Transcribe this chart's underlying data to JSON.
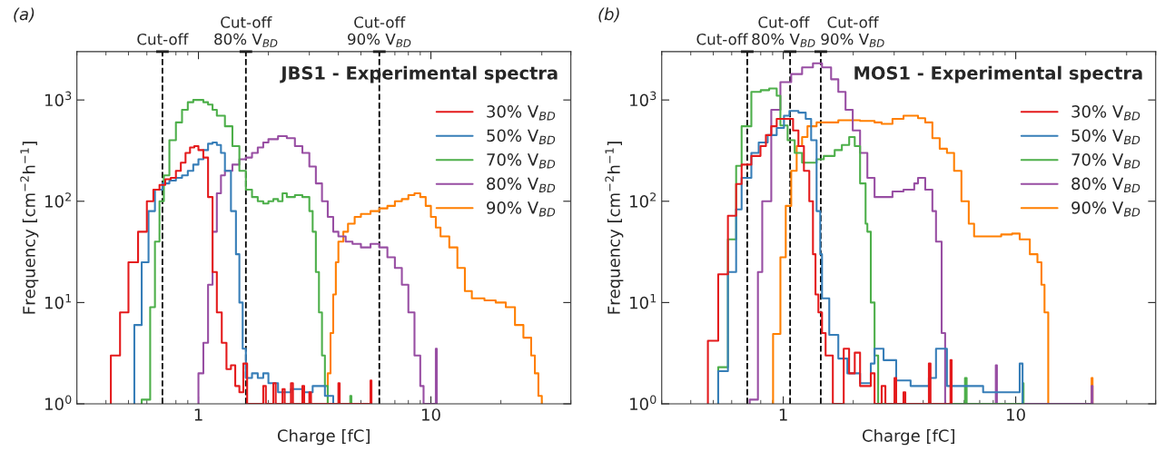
{
  "chart_data": [
    {
      "type": "step",
      "title": "JBS1 - Experimental spectra",
      "xlabel": "Charge [fC]",
      "ylabel": "Frequency [cm$^{−2}$h$^{−1}$]",
      "annotations": [
        "(a)"
      ],
      "log": "xy",
      "legend": "top right",
      "marker": "none",
      "line_style": "solid",
      "xlim": [
        0.3,
        40
      ],
      "ylim": [
        1,
        3000
      ],
      "xticks": [
        1,
        10
      ],
      "yticks": [
        {
          "value": 1,
          "label": "10$^{0}$"
        },
        {
          "value": 10,
          "label": "10$^{1}$"
        },
        {
          "value": 100,
          "label": "10$^{2}$"
        },
        {
          "value": 1000,
          "label": "10$^{3}$"
        }
      ],
      "ref_lines": [
        {
          "axis": "x",
          "value": 0.7,
          "label": "Cut-off",
          "color": "#000000",
          "line_style": "dashed"
        },
        {
          "axis": "x",
          "value": 1.6,
          "label": "Cut-off\n80% V$_{BD}$",
          "color": "#000000",
          "line_style": "dashed"
        },
        {
          "axis": "x",
          "value": 6,
          "label": "Cut-off\n90% V$_{BD}$",
          "color": "#000000",
          "line_style": "dashed"
        }
      ],
      "series": [
        {
          "name": "30% V$_{BD}$",
          "color": "#e41a1c",
          "x": [
            0.42,
            0.42,
            0.46,
            0.5,
            0.55,
            0.6,
            0.64,
            0.68,
            0.72,
            0.76,
            0.8,
            0.84,
            0.88,
            0.92,
            0.96,
            1.0,
            1.05,
            1.1,
            1.15,
            1.2,
            1.26,
            1.32,
            1.38,
            1.44,
            1.5,
            1.56,
            1.62,
            1.9,
            1.95,
            2.1,
            2.15,
            2.3,
            2.35,
            2.5,
            2.55,
            2.8,
            2.85,
            3.0,
            3.05,
            4.0,
            4.05,
            5.5,
            5.55
          ],
          "values": [
            1,
            3,
            8,
            25,
            50,
            100,
            130,
            145,
            165,
            170,
            200,
            240,
            300,
            340,
            350,
            320,
            270,
            110,
            20,
            8,
            4,
            2.2,
            2.4,
            1.5,
            1.3,
            2.5,
            1,
            1.5,
            1,
            1.6,
            1,
            1.4,
            1,
            1.6,
            1,
            1.5,
            1,
            1.3,
            1,
            1.6,
            1,
            1.7,
            1
          ]
        },
        {
          "name": "50% V$_{BD}$",
          "color": "#377eb8",
          "x": [
            0.53,
            0.53,
            0.57,
            0.61,
            0.65,
            0.7,
            0.75,
            0.8,
            0.85,
            0.9,
            0.95,
            1.0,
            1.05,
            1.1,
            1.15,
            1.2,
            1.25,
            1.3,
            1.38,
            1.45,
            1.5,
            1.55,
            1.6,
            1.7,
            1.8,
            1.9,
            2.0,
            2.2,
            2.5,
            2.8,
            3.1,
            3.5,
            3.8
          ],
          "values": [
            1,
            6,
            25,
            80,
            130,
            150,
            160,
            170,
            180,
            200,
            230,
            260,
            320,
            370,
            380,
            360,
            300,
            200,
            80,
            30,
            10,
            3.5,
            1.8,
            2,
            1.8,
            2,
            1.6,
            1.3,
            1.4,
            1.3,
            1.5,
            1.2,
            1
          ]
        },
        {
          "name": "70% V$_{BD}$",
          "color": "#4daf4a",
          "x": [
            0.57,
            0.57,
            0.62,
            0.65,
            0.68,
            0.71,
            0.75,
            0.8,
            0.85,
            0.9,
            0.95,
            1.0,
            1.05,
            1.1,
            1.15,
            1.2,
            1.3,
            1.4,
            1.5,
            1.6,
            1.7,
            1.8,
            1.9,
            2.0,
            2.1,
            2.2,
            2.3,
            2.4,
            2.6,
            2.8,
            3.0,
            3.1,
            3.2,
            3.3,
            3.4,
            3.5,
            3.6,
            4.5,
            4.55
          ],
          "values": [
            1,
            1.1,
            9,
            40,
            100,
            180,
            400,
            600,
            800,
            950,
            1000,
            1000,
            950,
            900,
            800,
            700,
            550,
            350,
            200,
            130,
            110,
            100,
            95,
            100,
            105,
            100,
            120,
            110,
            115,
            110,
            80,
            50,
            20,
            8,
            3,
            1.5,
            1,
            1.2,
            1
          ]
        },
        {
          "name": "80% V$_{BD}$",
          "color": "#984ea3",
          "x": [
            1.0,
            1.0,
            1.05,
            1.1,
            1.15,
            1.2,
            1.25,
            1.3,
            1.4,
            1.5,
            1.6,
            1.7,
            1.8,
            1.9,
            2.0,
            2.2,
            2.4,
            2.6,
            2.8,
            3.0,
            3.2,
            3.4,
            3.6,
            3.8,
            4.0,
            4.3,
            4.6,
            5.0,
            5.5,
            6.0,
            6.5,
            7.0,
            7.5,
            8.0,
            8.5,
            9.0,
            9.3,
            10.5,
            10.6
          ],
          "values": [
            1,
            2,
            4,
            15,
            50,
            120,
            180,
            200,
            230,
            260,
            270,
            300,
            340,
            380,
            410,
            440,
            420,
            350,
            300,
            220,
            150,
            100,
            70,
            50,
            45,
            40,
            38,
            35,
            38,
            35,
            28,
            22,
            15,
            8,
            3,
            1.5,
            1,
            3.5,
            1
          ]
        },
        {
          "name": "90% V$_{BD}$",
          "color": "#ff7f00",
          "x": [
            3.6,
            3.6,
            3.7,
            3.8,
            3.9,
            4.0,
            4.2,
            4.4,
            4.7,
            5.0,
            5.5,
            6.0,
            6.5,
            7.0,
            7.5,
            8.0,
            8.5,
            9.0,
            9.5,
            10,
            10.5,
            11,
            12,
            13,
            14,
            15,
            17,
            19,
            21,
            23,
            25,
            27,
            28,
            29,
            30
          ],
          "values": [
            1,
            2,
            5,
            12,
            25,
            40,
            50,
            60,
            70,
            75,
            80,
            85,
            90,
            100,
            105,
            115,
            120,
            110,
            90,
            70,
            55,
            45,
            35,
            22,
            13,
            11,
            10.5,
            10,
            9,
            6,
            4.5,
            3,
            2,
            1.2,
            1
          ]
        }
      ]
    },
    {
      "type": "step",
      "title": "MOS1 - Experimental spectra",
      "xlabel": "Charge [fC]",
      "ylabel": "Frequency [cm$^{−2}$h$^{−1}$]",
      "annotations": [
        "(b)"
      ],
      "log": "xy",
      "legend": "top right",
      "marker": "none",
      "line_style": "solid",
      "xlim": [
        0.3,
        40
      ],
      "ylim": [
        1,
        3000
      ],
      "xticks": [
        1,
        10
      ],
      "yticks": [
        {
          "value": 1,
          "label": "10$^{0}$"
        },
        {
          "value": 10,
          "label": "10$^{1}$"
        },
        {
          "value": 100,
          "label": "10$^{2}$"
        },
        {
          "value": 1000,
          "label": "10$^{3}$"
        }
      ],
      "ref_lines": [
        {
          "axis": "x",
          "value": 0.7,
          "label": "Cut-off",
          "color": "#000000",
          "line_style": "dashed"
        },
        {
          "axis": "x",
          "value": 1.07,
          "label": "Cut-off\n80% V$_{BD}$",
          "color": "#000000",
          "line_style": "dashed"
        },
        {
          "axis": "x",
          "value": 1.45,
          "label": "Cut-off\n90% V$_{BD}$",
          "color": "#000000",
          "line_style": "dashed"
        }
      ],
      "series": [
        {
          "name": "30% V$_{BD}$",
          "color": "#e41a1c",
          "x": [
            0.474,
            0.474,
            0.525,
            0.578,
            0.627,
            0.662,
            0.729,
            0.798,
            0.842,
            0.888,
            0.937,
            0.989,
            1.102,
            1.162,
            1.227,
            1.294,
            1.342,
            1.376,
            1.416,
            1.468,
            1.521,
            1.634,
            1.82,
            1.92,
            2.03,
            2.14,
            2.38,
            2.47,
            2.65,
            2.75,
            3.01,
            3.06,
            3.29,
            3.35,
            4.23,
            4.3,
            5.24,
            5.3
          ],
          "values": [
            1,
            4.2,
            19,
            72,
            148,
            230,
            280,
            350,
            450,
            550,
            650,
            650,
            500,
            350,
            200,
            100,
            30,
            12,
            8,
            5,
            3,
            1,
            3.5,
            2,
            3.2,
            1.5,
            2,
            1,
            1.5,
            1,
            1.8,
            1,
            1.3,
            1,
            2.5,
            1,
            2.7,
            1
          ]
        },
        {
          "name": "50% V$_{BD}$",
          "color": "#377eb8",
          "x": [
            0.525,
            0.525,
            0.578,
            0.627,
            0.662,
            0.729,
            0.784,
            0.857,
            0.937,
            1.007,
            1.063,
            1.162,
            1.249,
            1.318,
            1.391,
            1.442,
            1.468,
            1.577,
            1.725,
            1.887,
            2.14,
            2.38,
            2.47,
            2.7,
            3.06,
            3.53,
            4.23,
            4.54,
            5.06,
            7.24,
            10.4,
            10.7
          ],
          "values": [
            1,
            2.1,
            20,
            83,
            170,
            300,
            380,
            450,
            530,
            700,
            780,
            750,
            650,
            400,
            80,
            30,
            11,
            4.8,
            2.8,
            2,
            1.6,
            2.5,
            3.5,
            2.7,
            1.7,
            1.5,
            1.8,
            3.5,
            1.5,
            1.3,
            2.5,
            1
          ]
        },
        {
          "name": "70% V$_{BD}$",
          "color": "#4daf4a",
          "x": [
            0.525,
            0.525,
            0.578,
            0.627,
            0.662,
            0.729,
            0.8,
            0.87,
            0.937,
            0.972,
            1.044,
            1.12,
            1.205,
            1.294,
            1.391,
            1.494,
            1.664,
            1.787,
            1.921,
            2.03,
            2.14,
            2.26,
            2.3,
            2.38,
            2.47,
            2.56,
            6.05,
            6.15,
            10.7,
            10.8
          ],
          "values": [
            1,
            2.3,
            42,
            224,
            550,
            1200,
            1250,
            1300,
            1100,
            560,
            400,
            300,
            240,
            240,
            260,
            280,
            320,
            360,
            430,
            350,
            150,
            60,
            50,
            10,
            3,
            1,
            1.8,
            1,
            1.6,
            1
          ]
        },
        {
          "name": "80% V$_{BD}$",
          "color": "#984ea3",
          "x": [
            0.717,
            0.717,
            0.778,
            0.812,
            0.888,
            0.972,
            1.082,
            1.205,
            1.342,
            1.468,
            1.606,
            1.725,
            1.853,
            1.99,
            2.14,
            2.3,
            2.47,
            2.75,
            2.95,
            3.29,
            3.66,
            3.8,
            4.08,
            4.38,
            4.54,
            4.8,
            4.97,
            8.21,
            8.3,
            21.2,
            21.4
          ],
          "values": [
            1,
            1.1,
            20,
            100,
            800,
            1500,
            1800,
            2100,
            2300,
            2100,
            1600,
            1200,
            800,
            500,
            300,
            170,
            110,
            110,
            125,
            130,
            150,
            170,
            130,
            80,
            40,
            5,
            1,
            2.4,
            1,
            1.5,
            1
          ]
        },
        {
          "name": "90% V$_{BD}$",
          "color": "#ff7f00",
          "x": [
            0.904,
            0.904,
            0.972,
            1.025,
            1.082,
            1.142,
            1.205,
            1.271,
            1.391,
            1.725,
            2.14,
            2.47,
            2.65,
            2.95,
            3.29,
            3.8,
            4.08,
            4.38,
            4.71,
            5.06,
            5.43,
            5.84,
            6.28,
            6.62,
            7.24,
            8.66,
            9.65,
            10.4,
            11.5,
            12.4,
            12.9,
            13.3,
            13.8,
            21.2,
            21.4
          ],
          "values": [
            1,
            4.9,
            28,
            90,
            200,
            350,
            430,
            550,
            600,
            630,
            620,
            600,
            580,
            650,
            700,
            660,
            600,
            420,
            330,
            300,
            200,
            100,
            60,
            45,
            45,
            47,
            48,
            42,
            30,
            25,
            15,
            8,
            1,
            1.8,
            1
          ]
        }
      ]
    }
  ]
}
